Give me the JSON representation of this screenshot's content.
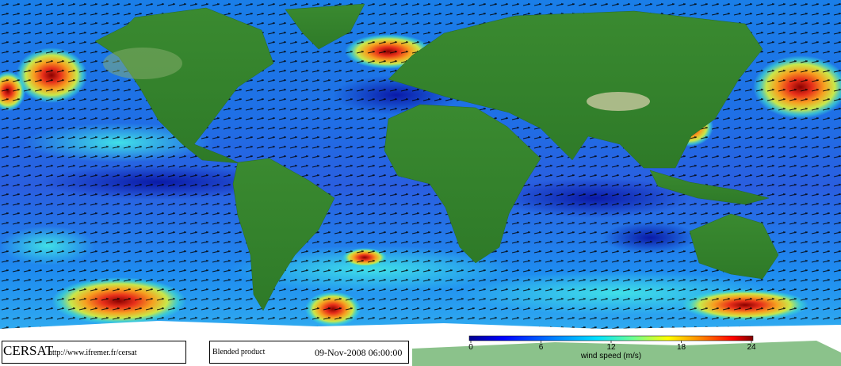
{
  "credit": {
    "logo": "CERSAT",
    "url": "http://www.ifremer.fr/cersat"
  },
  "product": "Blended product",
  "timestamp": "09-Nov-2008 06:00:00",
  "colorbar": {
    "label": "wind speed (m/s)",
    "lim": [
      0,
      24
    ],
    "ticks": [
      0,
      6,
      12,
      18,
      24
    ]
  }
}
